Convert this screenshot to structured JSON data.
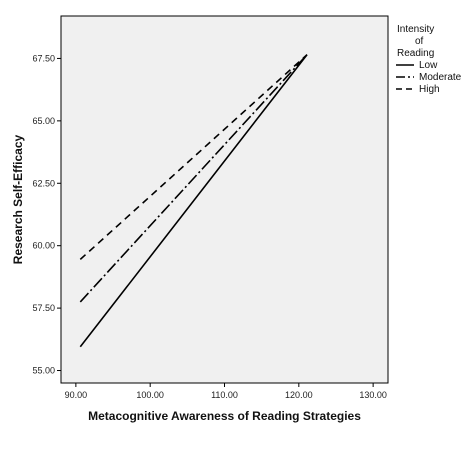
{
  "chart_data": {
    "type": "line",
    "title": "",
    "xlabel": "Metacognitive Awareness of Reading Strategies",
    "ylabel": "Research Self-Efficacy",
    "xlim": [
      88,
      132
    ],
    "ylim": [
      54.5,
      69.2
    ],
    "x_ticks": [
      90,
      100,
      110,
      120,
      130
    ],
    "y_ticks": [
      55,
      57.5,
      60,
      62.5,
      65,
      67.5
    ],
    "x_tick_labels": [
      "90.00",
      "100.00",
      "110.00",
      "120.00",
      "130.00"
    ],
    "y_tick_labels": [
      "55.00",
      "57.50",
      "60.00",
      "62.50",
      "65.00",
      "67.50"
    ],
    "grid": false,
    "legend": {
      "title_lines": [
        "Intensity",
        "of",
        "Reading"
      ],
      "placement": "right"
    },
    "series": [
      {
        "name": "Low",
        "dash": "solid",
        "x": [
          90.6,
          121.1
        ],
        "y": [
          55.95,
          67.65
        ]
      },
      {
        "name": "Moderate",
        "dash": "dashdot",
        "x": [
          90.6,
          121.1
        ],
        "y": [
          57.75,
          67.65
        ]
      },
      {
        "name": "High",
        "dash": "dashed",
        "x": [
          90.6,
          121.1
        ],
        "y": [
          59.45,
          67.65
        ]
      }
    ],
    "colors": {
      "background": "#f0f0f0",
      "line": "#000000"
    }
  }
}
